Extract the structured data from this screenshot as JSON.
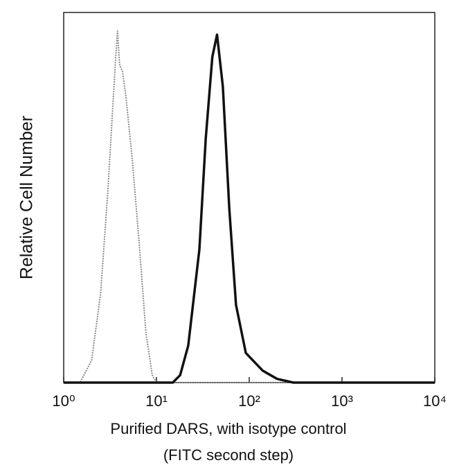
{
  "chart_data": {
    "type": "line",
    "y_label": "Relative Cell Number",
    "x_label": [
      "Purified DARS, with isotype control",
      "(FITC second step)"
    ],
    "x_log": true,
    "xlim": [
      1,
      10000
    ],
    "xticks": [
      {
        "value": 1,
        "label": "10⁰"
      },
      {
        "value": 10,
        "label": "10¹"
      },
      {
        "value": 100,
        "label": "10²"
      },
      {
        "value": 1000,
        "label": "10³"
      },
      {
        "value": 10000,
        "label": "10⁴"
      }
    ],
    "ylim": [
      0,
      5
    ],
    "series": [
      {
        "color": "#8a8a8a",
        "dashed": true,
        "x": [
          1,
          1.5,
          2,
          2.5,
          3,
          3.3,
          3.6,
          3.8,
          4,
          4.3,
          4.7,
          5.5,
          6.5,
          7.7,
          9,
          10,
          10000
        ],
        "values": [
          0,
          0,
          0.3,
          1.2,
          2.6,
          3.5,
          4.3,
          4.75,
          4.3,
          4.2,
          3.85,
          3.0,
          1.9,
          0.67,
          0.1,
          0,
          0
        ]
      },
      {
        "color": "#111111",
        "dashed": false,
        "x": [
          1,
          15,
          18,
          22,
          29,
          34,
          40,
          45,
          52,
          61,
          72,
          92,
          140,
          200,
          300,
          10000
        ],
        "values": [
          0,
          0,
          0.1,
          0.5,
          1.8,
          3.3,
          4.4,
          4.7,
          4.0,
          2.35,
          1.05,
          0.4,
          0.16,
          0.05,
          0,
          0
        ]
      }
    ]
  }
}
